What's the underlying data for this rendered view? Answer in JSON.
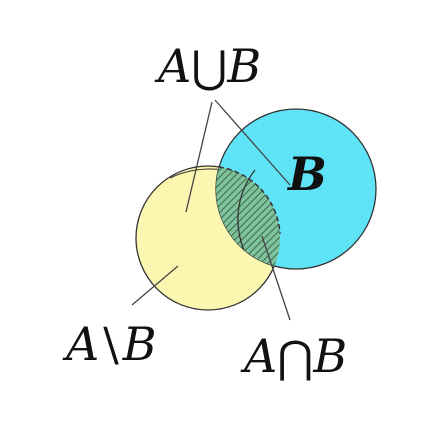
{
  "labels": {
    "union": "A⋃B",
    "union_left": "A",
    "union_op": "⋃",
    "union_right": "B",
    "set_b": "B",
    "difference_left": "A",
    "difference_op": "\\",
    "difference_right": "B",
    "intersection_left": "A",
    "intersection_op": "⋂",
    "intersection_right": "B"
  },
  "colors": {
    "set_a_fill": "#fbf7b0",
    "set_b_fill": "#5fe3f6",
    "intersection_fill": "#7fc2a0",
    "hatch_stroke": "#3d6b40",
    "outline": "#333333",
    "leader_line": "#444444"
  }
}
